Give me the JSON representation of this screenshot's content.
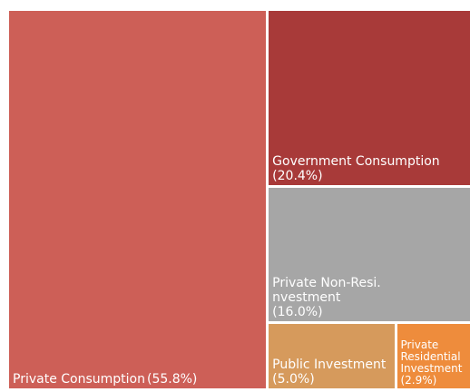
{
  "chart_data": {
    "type": "treemap",
    "categories": [
      "Private Consumption",
      "Government Consumption",
      "Private Non-Resi.\nnvestment",
      "Public Investment",
      "Private Residential Investment"
    ],
    "values": [
      55.8,
      20.4,
      16.0,
      5.0,
      2.9
    ],
    "value_labels": [
      "(55.8%)",
      "(20.4%)",
      "(16.0%)",
      "(5.0%)",
      "(2.9%)"
    ],
    "colors": [
      "#cd5f57",
      "#a83a39",
      "#a6a6a6",
      "#d69a5c",
      "#ee8c3c"
    ]
  }
}
